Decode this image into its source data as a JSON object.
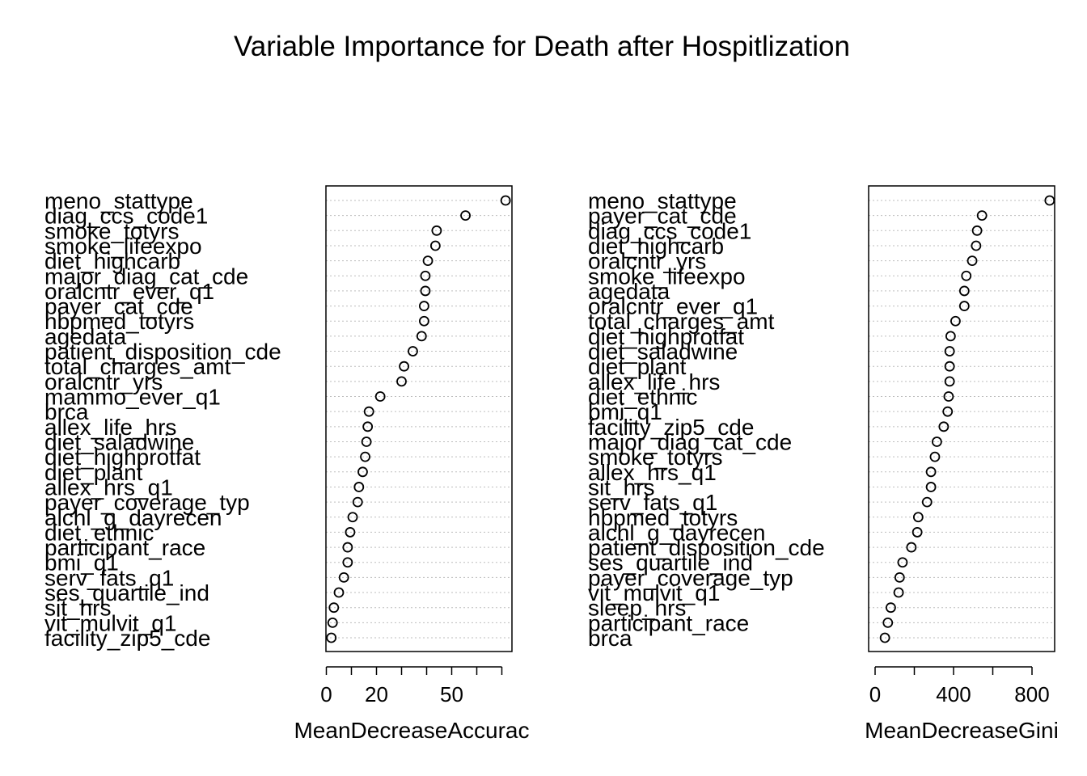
{
  "title": "Variable Importance for Death after Hospitlization",
  "chart_data": [
    {
      "type": "scatter",
      "subtype": "dotchart",
      "xlabel": "MeanDecreaseAccurac",
      "xlim": [
        0,
        75
      ],
      "xticks": [
        0,
        10,
        20,
        30,
        40,
        50,
        60,
        70
      ],
      "xtick_labels": [
        "0",
        "",
        "20",
        "",
        "",
        "50",
        "",
        ""
      ],
      "grid": "dotted-horizontal",
      "variables": [
        "meno_stattype",
        "diag_ccs_code1",
        "smoke_totyrs",
        "smoke_lifeexpo",
        "diet_highcarb",
        "major_diag_cat_cde",
        "oralcntr_ever_q1",
        "payer_cat_cde",
        "hbpmed_totyrs",
        "agedata",
        "patient_disposition_cde",
        "total_charges_amt",
        "oralcntr_yrs",
        "mammo_ever_q1",
        "brca",
        "allex_life_hrs",
        "diet_saladwine",
        "diet_highprotfat",
        "diet_plant",
        "allex_hrs_q1",
        "payer_coverage_typ",
        "alchl_g_dayrecen",
        "diet_ethnic",
        "participant_race",
        "bmi_q1",
        "serv_fats_q1",
        "ses_quartile_ind",
        "sit_hrs",
        "vit_mulvit_q1",
        "facility_zip5_cde"
      ],
      "values": [
        71.5,
        55.5,
        44.0,
        43.5,
        40.5,
        39.5,
        39.5,
        39.0,
        39.0,
        38.0,
        34.5,
        31.0,
        30.0,
        21.5,
        17.0,
        16.5,
        16.0,
        15.5,
        14.5,
        13.0,
        12.5,
        10.5,
        9.5,
        8.5,
        8.5,
        7.0,
        5.0,
        3.0,
        2.5,
        2.0
      ]
    },
    {
      "type": "scatter",
      "subtype": "dotchart",
      "xlabel": "MeanDecreaseGini",
      "xlim": [
        0,
        900
      ],
      "xticks": [
        0,
        200,
        400,
        600,
        800
      ],
      "xtick_labels": [
        "0",
        "",
        "400",
        "",
        "800"
      ],
      "grid": "dotted-horizontal",
      "variables": [
        "meno_stattype",
        "payer_cat_cde",
        "diag_ccs_code1",
        "diet_highcarb",
        "oralcntr_yrs",
        "smoke_lifeexpo",
        "agedata",
        "oralcntr_ever_q1",
        "total_charges_amt",
        "diet_highprotfat",
        "diet_saladwine",
        "diet_plant",
        "allex_life_hrs",
        "diet_ethnic",
        "bmi_q1",
        "facility_zip5_cde",
        "major_diag_cat_cde",
        "smoke_totyrs",
        "allex_hrs_q1",
        "sit_hrs",
        "serv_fats_q1",
        "hbpmed_totyrs",
        "alchl_g_dayrecen",
        "patient_disposition_cde",
        "ses_quartile_ind",
        "payer_coverage_typ",
        "vit_mulvit_q1",
        "sleep_hrs",
        "participant_race",
        "brca"
      ],
      "values": [
        890,
        545,
        520,
        515,
        495,
        465,
        455,
        455,
        410,
        385,
        380,
        380,
        380,
        375,
        370,
        350,
        315,
        305,
        285,
        285,
        265,
        220,
        215,
        185,
        140,
        125,
        120,
        80,
        65,
        50
      ]
    }
  ]
}
